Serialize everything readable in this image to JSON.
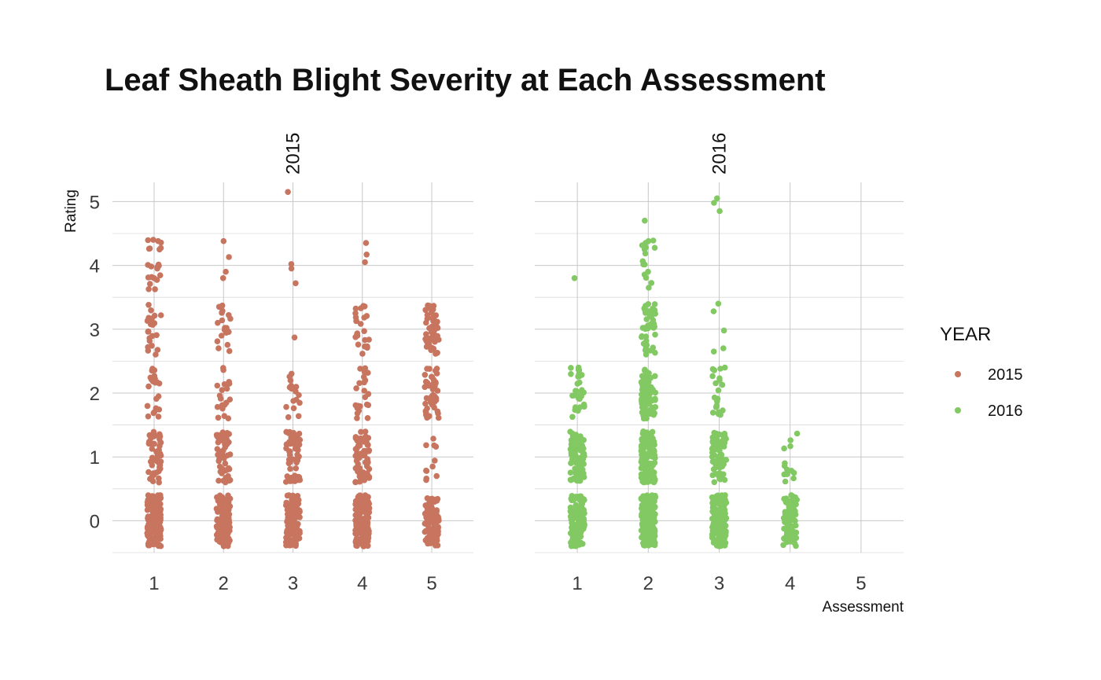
{
  "chart_data": {
    "type": "scatter",
    "title": "Leaf Sheath Blight Severity at Each Assessment",
    "xlabel": "Assessment",
    "ylabel": "Rating",
    "x_ticks": [
      "1",
      "2",
      "3",
      "4",
      "5"
    ],
    "y_ticks": [
      "0",
      "1",
      "2",
      "3",
      "4",
      "5"
    ],
    "xlim": [
      0.4,
      5.6
    ],
    "ylim": [
      -0.5,
      5.3
    ],
    "jitter": {
      "x": 0.1,
      "y": 0.4
    },
    "grid": true,
    "legend": {
      "title": "YEAR",
      "position": "right",
      "entries": [
        {
          "label": "2015",
          "color": "#C87560"
        },
        {
          "label": "2016",
          "color": "#82C963"
        }
      ]
    },
    "facets": [
      {
        "label": "2015",
        "color": "#C87560",
        "groups": [
          {
            "x": 1,
            "points": [
              {
                "y": 0,
                "n": 140
              },
              {
                "y": 1,
                "n": 55
              },
              {
                "y": 2,
                "n": 22
              },
              {
                "y": 3,
                "n": 24
              },
              {
                "y": 4,
                "n": 18
              }
            ],
            "outliers": [
              4.4,
              4.38,
              3.8,
              3.71
            ]
          },
          {
            "x": 2,
            "points": [
              {
                "y": 0,
                "n": 120
              },
              {
                "y": 1,
                "n": 50
              },
              {
                "y": 2,
                "n": 20
              },
              {
                "y": 3,
                "n": 18
              }
            ],
            "outliers": [
              4.38,
              4.13,
              3.9,
              3.8
            ]
          },
          {
            "x": 3,
            "points": [
              {
                "y": 0,
                "n": 140
              },
              {
                "y": 1,
                "n": 60
              },
              {
                "y": 2,
                "n": 16
              }
            ],
            "outliers": [
              5.15,
              4.02,
              3.95,
              3.72,
              2.87
            ]
          },
          {
            "x": 4,
            "points": [
              {
                "y": 0,
                "n": 150
              },
              {
                "y": 1,
                "n": 70
              },
              {
                "y": 2,
                "n": 24
              },
              {
                "y": 3,
                "n": 24
              }
            ],
            "outliers": [
              4.35,
              4.17,
              4.05
            ]
          },
          {
            "x": 5,
            "points": [
              {
                "y": 0,
                "n": 100
              },
              {
                "y": 2,
                "n": 45
              },
              {
                "y": 3,
                "n": 50
              },
              {
                "y": 1,
                "n": 8
              }
            ],
            "outliers": [
              0.85,
              0.7,
              0.66
            ]
          }
        ]
      },
      {
        "label": "2016",
        "color": "#82C963",
        "groups": [
          {
            "x": 1,
            "points": [
              {
                "y": 0,
                "n": 120
              },
              {
                "y": 1,
                "n": 90
              },
              {
                "y": 2,
                "n": 30
              }
            ],
            "outliers": [
              3.8
            ]
          },
          {
            "x": 2,
            "points": [
              {
                "y": 0,
                "n": 160
              },
              {
                "y": 1,
                "n": 120
              },
              {
                "y": 2,
                "n": 70
              },
              {
                "y": 3,
                "n": 45
              },
              {
                "y": 4,
                "n": 12
              }
            ],
            "outliers": [
              4.7,
              4.38,
              4.35,
              4.25,
              3.65
            ]
          },
          {
            "x": 3,
            "points": [
              {
                "y": 0,
                "n": 150
              },
              {
                "y": 1,
                "n": 80
              },
              {
                "y": 2,
                "n": 20
              }
            ],
            "outliers": [
              5.05,
              4.98,
              4.85,
              3.4,
              3.28,
              2.98,
              2.7,
              2.65
            ]
          },
          {
            "x": 4,
            "points": [
              {
                "y": 0,
                "n": 80
              },
              {
                "y": 1,
                "n": 10
              }
            ],
            "outliers": [
              0.9,
              0.8,
              0.75
            ]
          }
        ]
      }
    ]
  }
}
